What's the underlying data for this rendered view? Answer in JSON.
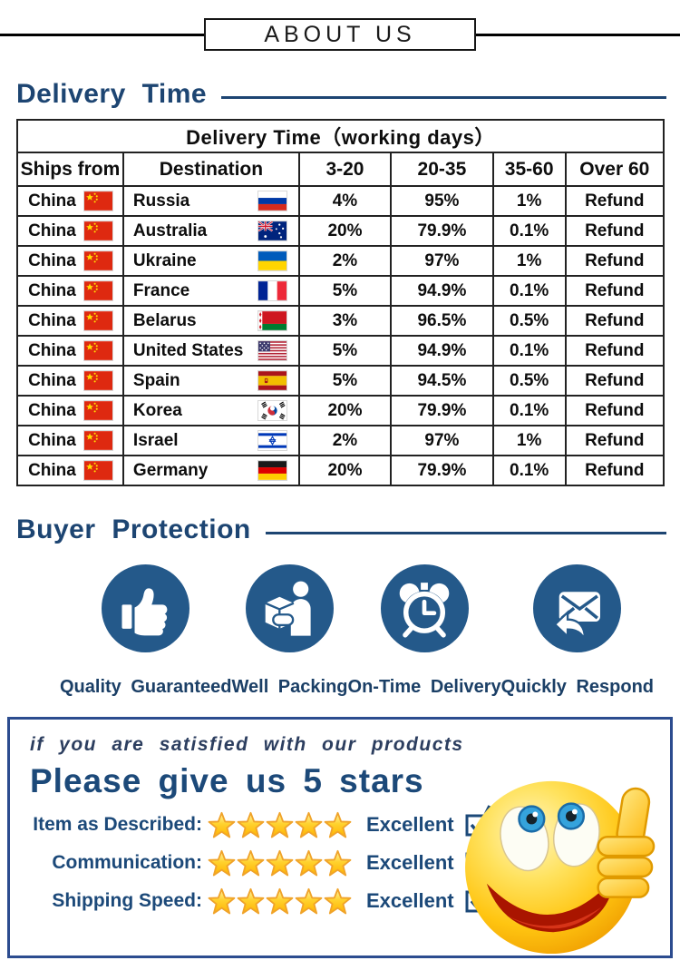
{
  "about_header": {
    "title": "ABOUT US"
  },
  "delivery": {
    "heading": "Delivery Time",
    "table": {
      "title": "Delivery Time（working days）",
      "columns": [
        "Ships from",
        "Destination",
        "3-20",
        "20-35",
        "35-60",
        "Over 60"
      ],
      "rows": [
        {
          "ships_from": "China",
          "ships_flag": "cn",
          "destination": "Russia",
          "dest_flag": "ru",
          "d3_20": "4%",
          "d20_35": "95%",
          "d35_60": "1%",
          "over60": "Refund"
        },
        {
          "ships_from": "China",
          "ships_flag": "cn",
          "destination": "Australia",
          "dest_flag": "au",
          "d3_20": "20%",
          "d20_35": "79.9%",
          "d35_60": "0.1%",
          "over60": "Refund"
        },
        {
          "ships_from": "China",
          "ships_flag": "cn",
          "destination": "Ukraine",
          "dest_flag": "ua",
          "d3_20": "2%",
          "d20_35": "97%",
          "d35_60": "1%",
          "over60": "Refund"
        },
        {
          "ships_from": "China",
          "ships_flag": "cn",
          "destination": "France",
          "dest_flag": "fr",
          "d3_20": "5%",
          "d20_35": "94.9%",
          "d35_60": "0.1%",
          "over60": "Refund"
        },
        {
          "ships_from": "China",
          "ships_flag": "cn",
          "destination": "Belarus",
          "dest_flag": "by",
          "d3_20": "3%",
          "d20_35": "96.5%",
          "d35_60": "0.5%",
          "over60": "Refund"
        },
        {
          "ships_from": "China",
          "ships_flag": "cn",
          "destination": "United States",
          "dest_flag": "us",
          "d3_20": "5%",
          "d20_35": "94.9%",
          "d35_60": "0.1%",
          "over60": "Refund"
        },
        {
          "ships_from": "China",
          "ships_flag": "cn",
          "destination": "Spain",
          "dest_flag": "es",
          "d3_20": "5%",
          "d20_35": "94.5%",
          "d35_60": "0.5%",
          "over60": "Refund"
        },
        {
          "ships_from": "China",
          "ships_flag": "cn",
          "destination": "Korea",
          "dest_flag": "kr",
          "d3_20": "20%",
          "d20_35": "79.9%",
          "d35_60": "0.1%",
          "over60": "Refund"
        },
        {
          "ships_from": "China",
          "ships_flag": "cn",
          "destination": "Israel",
          "dest_flag": "il",
          "d3_20": "2%",
          "d20_35": "97%",
          "d35_60": "1%",
          "over60": "Refund"
        },
        {
          "ships_from": "China",
          "ships_flag": "cn",
          "destination": "Germany",
          "dest_flag": "de",
          "d3_20": "20%",
          "d20_35": "79.9%",
          "d35_60": "0.1%",
          "over60": "Refund"
        }
      ]
    }
  },
  "buyer_protection": {
    "heading": "Buyer Protection",
    "items": [
      {
        "icon": "thumbs-up-icon",
        "label": "Quality Guaranteed"
      },
      {
        "icon": "packing-icon",
        "label": "Well Packing"
      },
      {
        "icon": "alarm-clock-icon",
        "label": "On-Time Delivery"
      },
      {
        "icon": "envelope-reply-icon",
        "label": "Quickly Respond"
      }
    ]
  },
  "feedback": {
    "intro": "if you are satisfied with our products",
    "headline": "Please give us 5 stars",
    "rows": [
      {
        "label": "Item as Described:",
        "stars": 5,
        "rating": "Excellent",
        "checked": true
      },
      {
        "label": "Communication:",
        "stars": 5,
        "rating": "Excellent",
        "checked": true
      },
      {
        "label": "Shipping Speed:",
        "stars": 5,
        "rating": "Excellent",
        "checked": true
      }
    ]
  },
  "colors": {
    "heading_blue": "#1d4572",
    "circle_blue": "#24598a",
    "caption_navy": "#1b3f66",
    "feedback_border_blue": "#2c4c8f",
    "feedback_navy": "#1c4979",
    "star_gold": "#ffd22e",
    "star_edge": "#f0a32a",
    "table_border": "#222222"
  }
}
